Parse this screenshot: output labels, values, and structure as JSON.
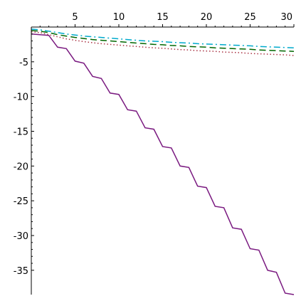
{
  "chart_data": {
    "type": "line",
    "title": "",
    "xlabel": "",
    "ylabel": "",
    "xlim": [
      0,
      30
    ],
    "ylim": [
      -38.5,
      0
    ],
    "grid": false,
    "legend": "none",
    "x_ticks": [
      5,
      10,
      15,
      20,
      25,
      30
    ],
    "x_tick_labels": [
      "5",
      "10",
      "15",
      "20",
      "25",
      "30"
    ],
    "y_ticks": [
      -5,
      -10,
      -15,
      -20,
      -25,
      -30,
      -35
    ],
    "y_tick_labels": [
      "-5",
      "-10",
      "-15",
      "-20",
      "-25",
      "-30",
      "-35"
    ],
    "series": [
      {
        "color": "#00aacc",
        "dash": "dashdot",
        "x": [
          0,
          1,
          2,
          3,
          4,
          5,
          6,
          7,
          8,
          9,
          10,
          11,
          12,
          13,
          14,
          15,
          16,
          17,
          18,
          19,
          20,
          21,
          22,
          23,
          24,
          25,
          26,
          27,
          28,
          29,
          30
        ],
        "y": [
          -0.3,
          -0.4,
          -0.6,
          -0.8,
          -1.0,
          -1.15,
          -1.3,
          -1.4,
          -1.5,
          -1.6,
          -1.7,
          -1.8,
          -1.9,
          -2.0,
          -2.05,
          -2.1,
          -2.2,
          -2.25,
          -2.3,
          -2.4,
          -2.45,
          -2.5,
          -2.55,
          -2.6,
          -2.65,
          -2.7,
          -2.8,
          -2.85,
          -2.9,
          -2.95,
          -3.0
        ]
      },
      {
        "color": "#006600",
        "dash": "dashed",
        "x": [
          0,
          1,
          2,
          3,
          4,
          5,
          6,
          7,
          8,
          9,
          10,
          11,
          12,
          13,
          14,
          15,
          16,
          17,
          18,
          19,
          20,
          21,
          22,
          23,
          24,
          25,
          26,
          27,
          28,
          29,
          30
        ],
        "y": [
          -0.5,
          -0.6,
          -0.8,
          -1.1,
          -1.3,
          -1.5,
          -1.65,
          -1.8,
          -1.9,
          -2.0,
          -2.1,
          -2.2,
          -2.3,
          -2.4,
          -2.5,
          -2.55,
          -2.65,
          -2.7,
          -2.8,
          -2.85,
          -2.9,
          -3.0,
          -3.05,
          -3.1,
          -3.15,
          -3.2,
          -3.3,
          -3.35,
          -3.4,
          -3.45,
          -3.5
        ]
      },
      {
        "color": "#aa3344",
        "dash": "dotted",
        "x": [
          0,
          1,
          2,
          3,
          4,
          5,
          6,
          7,
          8,
          9,
          10,
          11,
          12,
          13,
          14,
          15,
          16,
          17,
          18,
          19,
          20,
          21,
          22,
          23,
          24,
          25,
          26,
          27,
          28,
          29,
          30
        ],
        "y": [
          -0.7,
          -0.8,
          -1.1,
          -1.4,
          -1.7,
          -1.9,
          -2.1,
          -2.25,
          -2.4,
          -2.5,
          -2.6,
          -2.7,
          -2.8,
          -2.9,
          -3.0,
          -3.05,
          -3.15,
          -3.25,
          -3.3,
          -3.4,
          -3.45,
          -3.5,
          -3.6,
          -3.65,
          -3.7,
          -3.8,
          -3.85,
          -3.9,
          -3.95,
          -4.0,
          -4.1
        ]
      },
      {
        "color": "#7a1a80",
        "dash": "solid",
        "x": [
          0,
          1,
          2,
          3,
          4,
          5,
          6,
          7,
          8,
          9,
          10,
          11,
          12,
          13,
          14,
          15,
          16,
          17,
          18,
          19,
          20,
          21,
          22,
          23,
          24,
          25,
          26,
          27,
          28,
          29,
          30
        ],
        "y": [
          -1.0,
          -1.1,
          -1.2,
          -2.9,
          -3.1,
          -4.9,
          -5.2,
          -7.1,
          -7.4,
          -9.5,
          -9.7,
          -11.9,
          -12.1,
          -14.5,
          -14.7,
          -17.2,
          -17.4,
          -20.0,
          -20.2,
          -22.9,
          -23.1,
          -25.8,
          -26.0,
          -28.9,
          -29.1,
          -31.9,
          -32.1,
          -35.0,
          -35.3,
          -38.3,
          -38.5
        ]
      }
    ]
  }
}
